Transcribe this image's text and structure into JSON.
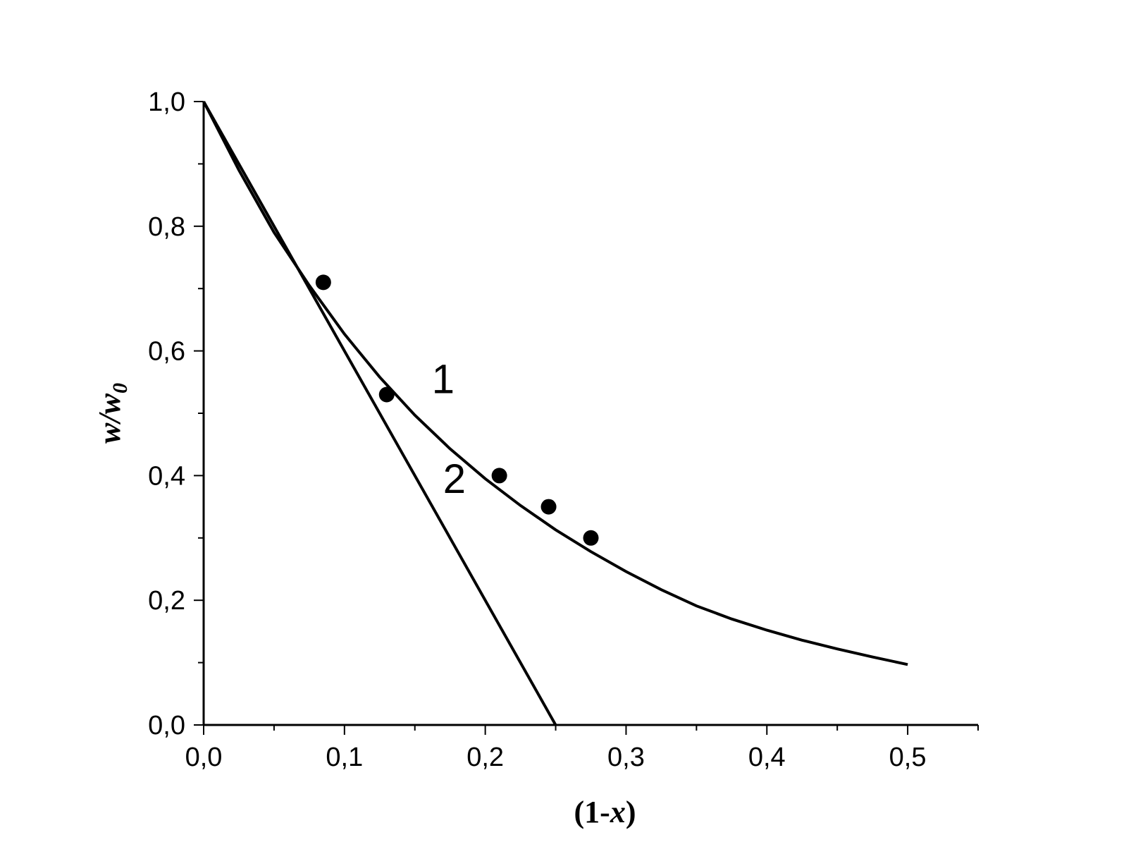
{
  "chart_data": {
    "type": "line",
    "xlabel": "(1-x)",
    "xlabel_parts": [
      "(1-",
      "x",
      ")"
    ],
    "ylabel": "w/w0",
    "ylabel_parts": [
      "w/w",
      "0"
    ],
    "xlim": [
      0.0,
      0.55
    ],
    "ylim": [
      0.0,
      1.0
    ],
    "x_ticks": [
      0.0,
      0.1,
      0.2,
      0.3,
      0.4,
      0.5
    ],
    "x_tick_labels": [
      "0,0",
      "0,1",
      "0,2",
      "0,3",
      "0,4",
      "0,5"
    ],
    "y_ticks": [
      0.0,
      0.2,
      0.4,
      0.6,
      0.8,
      1.0
    ],
    "y_tick_labels": [
      "0,0",
      "0,2",
      "0,4",
      "0,6",
      "0,8",
      "1,0"
    ],
    "grid": false,
    "series": [
      {
        "name": "1",
        "kind": "line",
        "x": [
          0.0,
          0.025,
          0.05,
          0.075,
          0.1,
          0.125,
          0.15,
          0.175,
          0.2,
          0.225,
          0.25,
          0.275,
          0.3,
          0.325,
          0.35,
          0.375,
          0.4,
          0.425,
          0.45,
          0.475,
          0.5
        ],
        "y": [
          1.0,
          0.89,
          0.79,
          0.705,
          0.627,
          0.558,
          0.497,
          0.443,
          0.395,
          0.352,
          0.313,
          0.278,
          0.246,
          0.217,
          0.191,
          0.17,
          0.152,
          0.136,
          0.122,
          0.109,
          0.097
        ]
      },
      {
        "name": "2",
        "kind": "line",
        "x": [
          0.0,
          0.25
        ],
        "y": [
          1.0,
          0.0
        ]
      },
      {
        "kind": "scatter",
        "x": [
          0.085,
          0.13,
          0.21,
          0.245,
          0.275
        ],
        "y": [
          0.71,
          0.53,
          0.4,
          0.35,
          0.3
        ]
      }
    ],
    "annotations": [
      {
        "text": "1",
        "x": 0.162,
        "y": 0.555
      },
      {
        "text": "2",
        "x": 0.17,
        "y": 0.395
      }
    ]
  }
}
